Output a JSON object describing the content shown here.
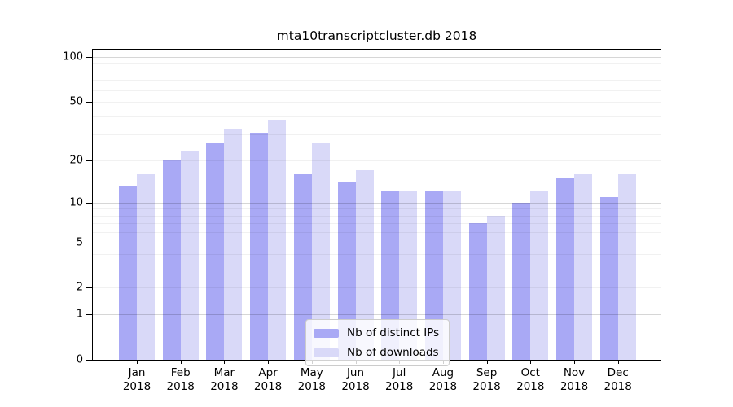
{
  "title": "mta10transcriptcluster.db 2018",
  "chart_data": {
    "type": "bar",
    "title": "mta10transcriptcluster.db 2018",
    "categories": [
      "Jan",
      "Feb",
      "Mar",
      "Apr",
      "May",
      "Jun",
      "Jul",
      "Aug",
      "Sep",
      "Oct",
      "Nov",
      "Dec"
    ],
    "category_year": "2018",
    "series": [
      {
        "name": "Nb of distinct IPs",
        "color": "#a9a9f5",
        "values": [
          13,
          20,
          26,
          31,
          16,
          14,
          12,
          12,
          7,
          10,
          15,
          11
        ]
      },
      {
        "name": "Nb of downloads",
        "color": "#d9d9f8",
        "values": [
          16,
          23,
          33,
          38,
          26,
          17,
          12,
          12,
          8,
          12,
          16,
          16
        ]
      }
    ],
    "yticks": [
      0,
      1,
      2,
      5,
      10,
      20,
      50,
      100
    ],
    "minor_gridlines": [
      2,
      3,
      4,
      5,
      6,
      7,
      8,
      9,
      20,
      30,
      40,
      50,
      60,
      70,
      80,
      90
    ],
    "major_gridlines": [
      1,
      10,
      100
    ],
    "scale": "log1p",
    "ylim": [
      0,
      113
    ],
    "xlabel": "",
    "ylabel": "",
    "grid": "on",
    "legend_position": "bottom-center"
  }
}
